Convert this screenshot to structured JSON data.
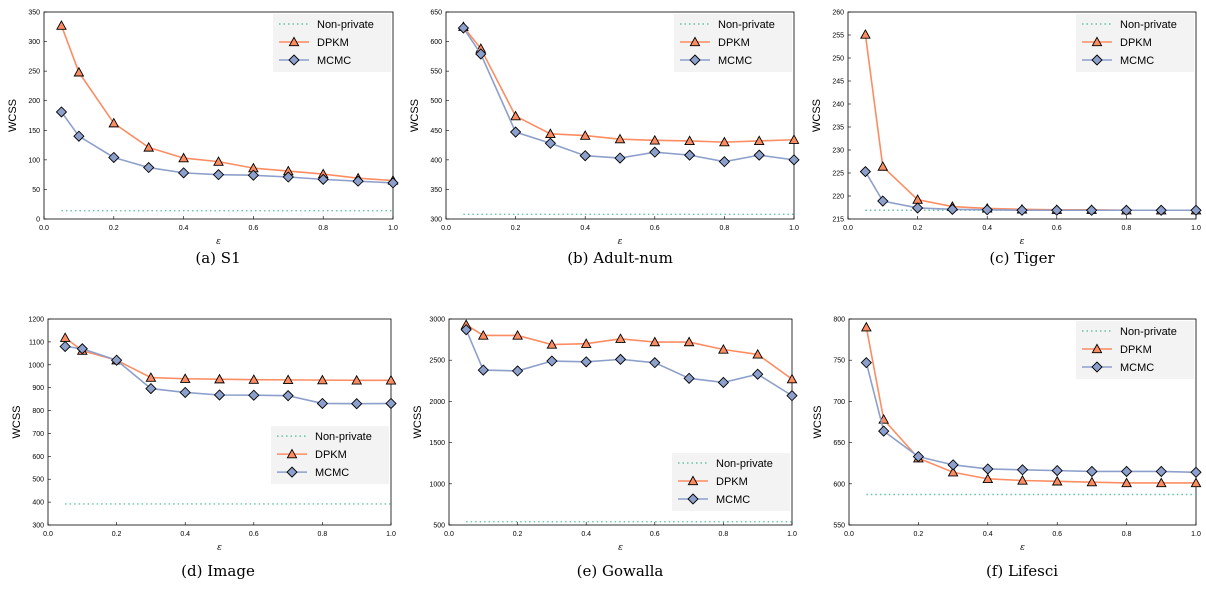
{
  "colors": {
    "non_private": "#66c2a5",
    "dpkm": "#fc8d62",
    "mcmc": "#8da0cb",
    "legend_bg": "#f3f3f3"
  },
  "chart_data": [
    {
      "type": "line",
      "caption": "(a)  S1",
      "xlabel": "ε",
      "ylabel": "WCSS",
      "xlim": [
        0,
        1
      ],
      "ylim": [
        0,
        350
      ],
      "xticks": [
        "0.0",
        "0.2",
        "0.4",
        "0.6",
        "0.8",
        "1.0"
      ],
      "yticks": [
        "0",
        "50",
        "100",
        "150",
        "200",
        "250",
        "300",
        "350"
      ],
      "legend": "top-right",
      "series": [
        {
          "name": "Non-private",
          "x": [
            0.05,
            1.0
          ],
          "values": [
            14,
            14
          ]
        },
        {
          "name": "DPKM",
          "x": [
            0.05,
            0.1,
            0.2,
            0.3,
            0.4,
            0.5,
            0.6,
            0.7,
            0.8,
            0.9,
            1.0
          ],
          "values": [
            327,
            248,
            162,
            121,
            103,
            97,
            86,
            81,
            76,
            69,
            65
          ]
        },
        {
          "name": "MCMC",
          "x": [
            0.05,
            0.1,
            0.2,
            0.3,
            0.4,
            0.5,
            0.6,
            0.7,
            0.8,
            0.9,
            1.0
          ],
          "values": [
            181,
            140,
            104,
            87,
            78,
            75,
            74,
            71,
            67,
            64,
            61
          ]
        }
      ]
    },
    {
      "type": "line",
      "caption": "(b)  Adult-num",
      "xlabel": "ε",
      "ylabel": "WCSS",
      "xlim": [
        0,
        1
      ],
      "ylim": [
        300,
        650
      ],
      "xticks": [
        "0.0",
        "0.2",
        "0.4",
        "0.6",
        "0.8",
        "1.0"
      ],
      "yticks": [
        "300",
        "350",
        "400",
        "450",
        "500",
        "550",
        "600",
        "650"
      ],
      "legend": "top-right",
      "series": [
        {
          "name": "Non-private",
          "x": [
            0.05,
            1.0
          ],
          "values": [
            308,
            308
          ]
        },
        {
          "name": "DPKM",
          "x": [
            0.05,
            0.1,
            0.2,
            0.3,
            0.4,
            0.5,
            0.6,
            0.7,
            0.8,
            0.9,
            1.0
          ],
          "values": [
            625,
            588,
            474,
            444,
            441,
            435,
            433,
            432,
            430,
            432,
            434
          ]
        },
        {
          "name": "MCMC",
          "x": [
            0.05,
            0.1,
            0.2,
            0.3,
            0.4,
            0.5,
            0.6,
            0.7,
            0.8,
            0.9,
            1.0
          ],
          "values": [
            623,
            579,
            447,
            428,
            407,
            403,
            413,
            408,
            397,
            408,
            400
          ]
        }
      ]
    },
    {
      "type": "line",
      "caption": "(c)  Tiger",
      "xlabel": "ε",
      "ylabel": "WCSS",
      "xlim": [
        0,
        1
      ],
      "ylim": [
        215,
        260
      ],
      "xticks": [
        "0.0",
        "0.2",
        "0.4",
        "0.6",
        "0.8",
        "1.0"
      ],
      "yticks": [
        "215",
        "220",
        "225",
        "230",
        "235",
        "240",
        "245",
        "250",
        "255",
        "260"
      ],
      "legend": "top-right",
      "series": [
        {
          "name": "Non-private",
          "x": [
            0.05,
            1.0
          ],
          "values": [
            216.9,
            216.9
          ]
        },
        {
          "name": "DPKM",
          "x": [
            0.05,
            0.1,
            0.2,
            0.3,
            0.4,
            0.5,
            0.6,
            0.7,
            0.8,
            0.9,
            1.0
          ],
          "values": [
            255.1,
            226.4,
            219.2,
            217.7,
            217.3,
            217.1,
            217.0,
            217.0,
            216.9,
            216.9,
            216.9
          ]
        },
        {
          "name": "MCMC",
          "x": [
            0.05,
            0.1,
            0.2,
            0.3,
            0.4,
            0.5,
            0.6,
            0.7,
            0.8,
            0.9,
            1.0
          ],
          "values": [
            225.3,
            218.9,
            217.4,
            217.1,
            217.0,
            216.9,
            216.9,
            216.9,
            216.9,
            216.9,
            216.9
          ]
        }
      ]
    },
    {
      "type": "line",
      "caption": "(d)  Image",
      "xlabel": "ε",
      "ylabel": "WCSS",
      "xlim": [
        0,
        1
      ],
      "ylim": [
        300,
        1200
      ],
      "xticks": [
        "0.0",
        "0.2",
        "0.4",
        "0.6",
        "0.8",
        "1.0"
      ],
      "yticks": [
        "300",
        "400",
        "500",
        "600",
        "700",
        "800",
        "900",
        "1000",
        "1100",
        "1200"
      ],
      "legend": "center-right",
      "series": [
        {
          "name": "Non-private",
          "x": [
            0.05,
            1.0
          ],
          "values": [
            392,
            392
          ]
        },
        {
          "name": "DPKM",
          "x": [
            0.05,
            0.1,
            0.2,
            0.3,
            0.4,
            0.5,
            0.6,
            0.7,
            0.8,
            0.9,
            1.0
          ],
          "values": [
            1118,
            1062,
            1020,
            944,
            939,
            937,
            935,
            934,
            933,
            932,
            932
          ]
        },
        {
          "name": "MCMC",
          "x": [
            0.05,
            0.1,
            0.2,
            0.3,
            0.4,
            0.5,
            0.6,
            0.7,
            0.8,
            0.9,
            1.0
          ],
          "values": [
            1080,
            1070,
            1020,
            896,
            879,
            868,
            867,
            865,
            831,
            830,
            831
          ]
        }
      ]
    },
    {
      "type": "line",
      "caption": "(e)  Gowalla",
      "xlabel": "ε",
      "ylabel": "WCSS",
      "xlim": [
        0,
        1
      ],
      "ylim": [
        500,
        3000
      ],
      "xticks": [
        "0.0",
        "0.2",
        "0.4",
        "0.6",
        "0.8",
        "1.0"
      ],
      "yticks": [
        "500",
        "1000",
        "1500",
        "2000",
        "2500",
        "3000"
      ],
      "legend": "bottom-right",
      "series": [
        {
          "name": "Non-private",
          "x": [
            0.05,
            1.0
          ],
          "values": [
            540,
            540
          ]
        },
        {
          "name": "DPKM",
          "x": [
            0.05,
            0.1,
            0.2,
            0.3,
            0.4,
            0.5,
            0.6,
            0.7,
            0.8,
            0.9,
            1.0
          ],
          "values": [
            2930,
            2800,
            2800,
            2690,
            2700,
            2760,
            2720,
            2720,
            2630,
            2570,
            2270
          ]
        },
        {
          "name": "MCMC",
          "x": [
            0.05,
            0.1,
            0.2,
            0.3,
            0.4,
            0.5,
            0.6,
            0.7,
            0.8,
            0.9,
            1.0
          ],
          "values": [
            2870,
            2380,
            2370,
            2490,
            2480,
            2510,
            2470,
            2280,
            2230,
            2330,
            2070
          ]
        }
      ]
    },
    {
      "type": "line",
      "caption": "(f)  Lifesci",
      "xlabel": "ε",
      "ylabel": "WCSS",
      "xlim": [
        0,
        1
      ],
      "ylim": [
        550,
        800
      ],
      "xticks": [
        "0.0",
        "0.2",
        "0.4",
        "0.6",
        "0.8",
        "1.0"
      ],
      "yticks": [
        "550",
        "600",
        "650",
        "700",
        "750",
        "800"
      ],
      "legend": "top-right",
      "series": [
        {
          "name": "Non-private",
          "x": [
            0.05,
            1.0
          ],
          "values": [
            587,
            587
          ]
        },
        {
          "name": "DPKM",
          "x": [
            0.05,
            0.1,
            0.2,
            0.3,
            0.4,
            0.5,
            0.6,
            0.7,
            0.8,
            0.9,
            1.0
          ],
          "values": [
            790,
            678,
            631,
            614,
            606,
            604,
            603,
            602,
            601,
            601,
            601
          ]
        },
        {
          "name": "MCMC",
          "x": [
            0.05,
            0.1,
            0.2,
            0.3,
            0.4,
            0.5,
            0.6,
            0.7,
            0.8,
            0.9,
            1.0
          ],
          "values": [
            747,
            664,
            633,
            623,
            618,
            617,
            616,
            615,
            615,
            615,
            614
          ]
        }
      ]
    }
  ]
}
